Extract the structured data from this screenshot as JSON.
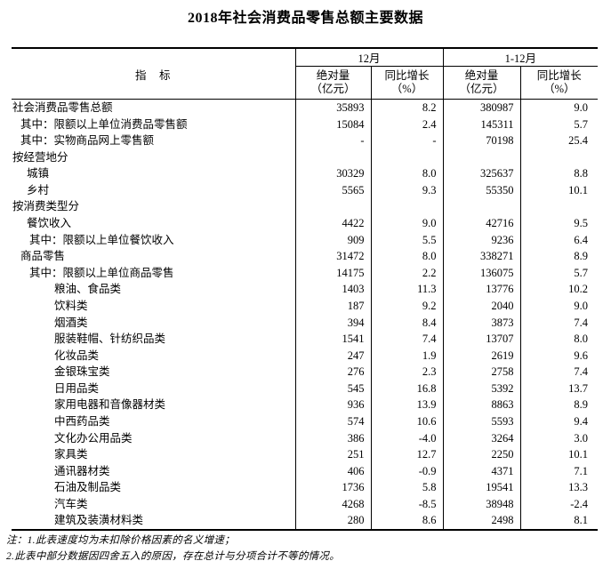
{
  "title": "2018年社会消费品零售总额主要数据",
  "table": {
    "indicator_header": "指　标",
    "groups": [
      {
        "label": "12月",
        "sub": [
          "绝对量\n（亿元）",
          "同比增长\n（%）"
        ]
      },
      {
        "label": "1-12月",
        "sub": [
          "绝对量\n（亿元）",
          "同比增长\n（%）"
        ]
      }
    ],
    "rows": [
      {
        "label": "社会消费品零售总额",
        "indent": 0,
        "values": [
          "35893",
          "8.2",
          "380987",
          "9.0"
        ]
      },
      {
        "label": "其中：限额以上单位消费品零售额",
        "indent": 1,
        "values": [
          "15084",
          "2.4",
          "145311",
          "5.7"
        ]
      },
      {
        "label": "其中：实物商品网上零售额",
        "indent": 1,
        "values": [
          "-",
          "-",
          "70198",
          "25.4"
        ]
      },
      {
        "label": "按经营地分",
        "indent": 0,
        "values": [
          "",
          "",
          "",
          ""
        ]
      },
      {
        "label": "城镇",
        "indent": 2,
        "values": [
          "30329",
          "8.0",
          "325637",
          "8.8"
        ]
      },
      {
        "label": "乡村",
        "indent": 2,
        "values": [
          "5565",
          "9.3",
          "55350",
          "10.1"
        ]
      },
      {
        "label": "按消费类型分",
        "indent": 0,
        "values": [
          "",
          "",
          "",
          ""
        ]
      },
      {
        "label": "餐饮收入",
        "indent": 2,
        "values": [
          "4422",
          "9.0",
          "42716",
          "9.5"
        ]
      },
      {
        "label": "其中：限额以上单位餐饮收入",
        "indent": 3,
        "values": [
          "909",
          "5.5",
          "9236",
          "6.4"
        ]
      },
      {
        "label": "商品零售",
        "indent": 1,
        "values": [
          "31472",
          "8.0",
          "338271",
          "8.9"
        ]
      },
      {
        "label": "其中：限额以上单位商品零售",
        "indent": 3,
        "values": [
          "14175",
          "2.2",
          "136075",
          "5.7"
        ]
      },
      {
        "label": "粮油、食品类",
        "indent": 4,
        "values": [
          "1403",
          "11.3",
          "13776",
          "10.2"
        ]
      },
      {
        "label": "饮料类",
        "indent": 4,
        "values": [
          "187",
          "9.2",
          "2040",
          "9.0"
        ]
      },
      {
        "label": "烟酒类",
        "indent": 4,
        "values": [
          "394",
          "8.4",
          "3873",
          "7.4"
        ]
      },
      {
        "label": "服装鞋帽、针纺织品类",
        "indent": 4,
        "values": [
          "1541",
          "7.4",
          "13707",
          "8.0"
        ]
      },
      {
        "label": "化妆品类",
        "indent": 4,
        "values": [
          "247",
          "1.9",
          "2619",
          "9.6"
        ]
      },
      {
        "label": "金银珠宝类",
        "indent": 4,
        "values": [
          "276",
          "2.3",
          "2758",
          "7.4"
        ]
      },
      {
        "label": "日用品类",
        "indent": 4,
        "values": [
          "545",
          "16.8",
          "5392",
          "13.7"
        ]
      },
      {
        "label": "家用电器和音像器材类",
        "indent": 4,
        "values": [
          "936",
          "13.9",
          "8863",
          "8.9"
        ]
      },
      {
        "label": "中西药品类",
        "indent": 4,
        "values": [
          "574",
          "10.6",
          "5593",
          "9.4"
        ]
      },
      {
        "label": "文化办公用品类",
        "indent": 4,
        "values": [
          "386",
          "-4.0",
          "3264",
          "3.0"
        ]
      },
      {
        "label": "家具类",
        "indent": 4,
        "values": [
          "251",
          "12.7",
          "2250",
          "10.1"
        ]
      },
      {
        "label": "通讯器材类",
        "indent": 4,
        "values": [
          "406",
          "-0.9",
          "4371",
          "7.1"
        ]
      },
      {
        "label": "石油及制品类",
        "indent": 4,
        "values": [
          "1736",
          "5.8",
          "19541",
          "13.3"
        ]
      },
      {
        "label": "汽车类",
        "indent": 4,
        "values": [
          "4268",
          "-8.5",
          "38948",
          "-2.4"
        ]
      },
      {
        "label": "建筑及装潢材料类",
        "indent": 4,
        "values": [
          "280",
          "8.6",
          "2498",
          "8.1"
        ]
      }
    ]
  },
  "notes": [
    "注：1.此表速度均为未扣除价格因素的名义增速；",
    "2.此表中部分数据因四舍五入的原因，存在总计与分项合计不等的情况。"
  ]
}
